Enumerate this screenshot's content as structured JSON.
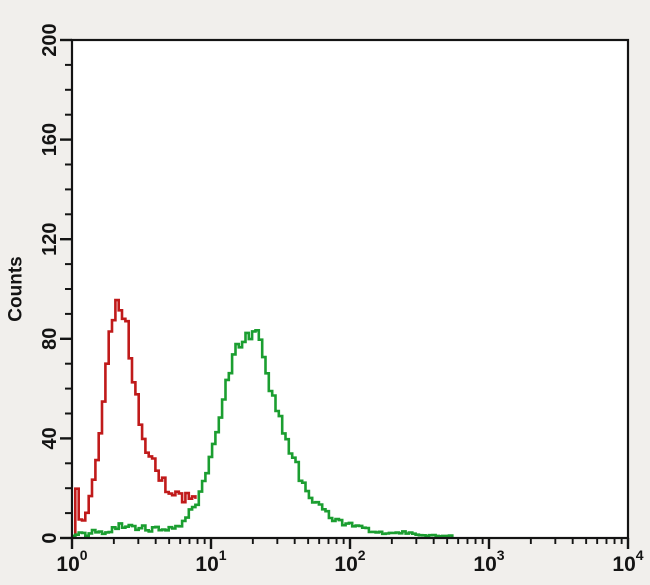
{
  "figure": {
    "background_color": "#f1efec",
    "plot_background_color": "#ffffff",
    "frame_color": "#141414"
  },
  "chart_data": {
    "type": "line",
    "subtype": "flow-cytometry-histogram",
    "title": "",
    "xlabel": "",
    "ylabel": "Counts",
    "x_scale": "log10",
    "x_log_range": [
      0,
      4
    ],
    "ylim": [
      0,
      200
    ],
    "y_major_ticks": [
      0,
      40,
      80,
      120,
      160,
      200
    ],
    "y_minor_step": 10,
    "x_major_ticks": [
      {
        "base": "10",
        "exp": "0"
      },
      {
        "base": "10",
        "exp": "1"
      },
      {
        "base": "10",
        "exp": "2"
      },
      {
        "base": "10",
        "exp": "3"
      },
      {
        "base": "10",
        "exp": "4"
      }
    ],
    "x_minor_mantissas": [
      2,
      3,
      4,
      5,
      6,
      7,
      8,
      9
    ],
    "grid": false,
    "legend": "none",
    "series": [
      {
        "name": "red-histogram",
        "color": "#c01a1a",
        "peak": {
          "x": 2.1,
          "counts": 95
        },
        "points_log10x_counts": [
          [
            0.0,
            0
          ],
          [
            0.006,
            14
          ],
          [
            0.012,
            21
          ],
          [
            0.02,
            17
          ],
          [
            0.03,
            20
          ],
          [
            0.04,
            12
          ],
          [
            0.05,
            6
          ],
          [
            0.062,
            5
          ],
          [
            0.08,
            8
          ],
          [
            0.1,
            12
          ],
          [
            0.125,
            20
          ],
          [
            0.15,
            27
          ],
          [
            0.17,
            33
          ],
          [
            0.19,
            40
          ],
          [
            0.21,
            48
          ],
          [
            0.225,
            60
          ],
          [
            0.24,
            70
          ],
          [
            0.258,
            78
          ],
          [
            0.275,
            85
          ],
          [
            0.295,
            89
          ],
          [
            0.315,
            95
          ],
          [
            0.33,
            91
          ],
          [
            0.345,
            87
          ],
          [
            0.362,
            91
          ],
          [
            0.378,
            88
          ],
          [
            0.392,
            82
          ],
          [
            0.41,
            72
          ],
          [
            0.43,
            64
          ],
          [
            0.46,
            54
          ],
          [
            0.49,
            45
          ],
          [
            0.52,
            38
          ],
          [
            0.55,
            33
          ],
          [
            0.59,
            28
          ],
          [
            0.63,
            24
          ],
          [
            0.67,
            20
          ],
          [
            0.71,
            17
          ],
          [
            0.75,
            19
          ],
          [
            0.78,
            15
          ],
          [
            0.81,
            17
          ],
          [
            0.845,
            14
          ],
          [
            0.88,
            16
          ],
          [
            0.91,
            17
          ]
        ]
      },
      {
        "name": "green-histogram",
        "color": "#1b9e30",
        "peak": {
          "x": 20,
          "counts": 85
        },
        "points_log10x_counts": [
          [
            0.0,
            1
          ],
          [
            0.05,
            2
          ],
          [
            0.1,
            1
          ],
          [
            0.15,
            3
          ],
          [
            0.2,
            2
          ],
          [
            0.25,
            3
          ],
          [
            0.3,
            4
          ],
          [
            0.35,
            5
          ],
          [
            0.385,
            4
          ],
          [
            0.42,
            5
          ],
          [
            0.46,
            4
          ],
          [
            0.5,
            4
          ],
          [
            0.55,
            3
          ],
          [
            0.6,
            4
          ],
          [
            0.65,
            3
          ],
          [
            0.7,
            4
          ],
          [
            0.75,
            4
          ],
          [
            0.8,
            6
          ],
          [
            0.83,
            9
          ],
          [
            0.86,
            13
          ],
          [
            0.9,
            15
          ],
          [
            0.95,
            26
          ],
          [
            1.0,
            37
          ],
          [
            1.05,
            46
          ],
          [
            1.09,
            58
          ],
          [
            1.14,
            69
          ],
          [
            1.19,
            78
          ],
          [
            1.23,
            81
          ],
          [
            1.26,
            83
          ],
          [
            1.28,
            80
          ],
          [
            1.3,
            85
          ],
          [
            1.32,
            84
          ],
          [
            1.35,
            78
          ],
          [
            1.38,
            71
          ],
          [
            1.42,
            60
          ],
          [
            1.45,
            54
          ],
          [
            1.48,
            52
          ],
          [
            1.52,
            40
          ],
          [
            1.56,
            34
          ],
          [
            1.6,
            30
          ],
          [
            1.66,
            20
          ],
          [
            1.72,
            14
          ],
          [
            1.78,
            12
          ],
          [
            1.86,
            8
          ],
          [
            1.95,
            6
          ],
          [
            2.05,
            4
          ],
          [
            2.15,
            3
          ],
          [
            2.25,
            2
          ],
          [
            2.4,
            2
          ],
          [
            2.55,
            1
          ],
          [
            2.7,
            1
          ],
          [
            2.75,
            0
          ]
        ]
      }
    ]
  }
}
